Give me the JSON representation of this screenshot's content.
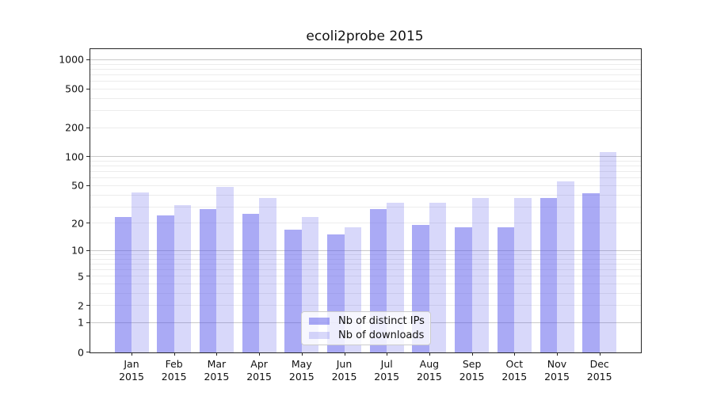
{
  "chart_data": {
    "type": "bar",
    "title": "ecoli2probe 2015",
    "categories": [
      "Jan",
      "Feb",
      "Mar",
      "Apr",
      "May",
      "Jun",
      "Jul",
      "Aug",
      "Sep",
      "Oct",
      "Nov",
      "Dec"
    ],
    "year": "2015",
    "series": [
      {
        "name": "Nb of distinct IPs",
        "color": "rgba(85,85,235,0.5)",
        "color_hex_observed": "#aaaaf5",
        "values": [
          23,
          24,
          28,
          25,
          17,
          15,
          28,
          19,
          18,
          18,
          37,
          41
        ]
      },
      {
        "name": "Nb of downloads",
        "color": "rgba(85,85,235,0.23)",
        "color_hex_observed": "#d8d8f8",
        "values": [
          42,
          31,
          48,
          37,
          23,
          18,
          33,
          33,
          37,
          37,
          55,
          110
        ]
      }
    ],
    "yscale": "log1p",
    "yticks": [
      0,
      1,
      2,
      5,
      10,
      20,
      50,
      100,
      200,
      500,
      1000
    ],
    "minor_grid_values": [
      2,
      3,
      4,
      5,
      6,
      7,
      8,
      9,
      20,
      30,
      40,
      50,
      60,
      70,
      80,
      90,
      200,
      300,
      400,
      500,
      600,
      700,
      800,
      900
    ],
    "major_grid_values": [
      1,
      10,
      100,
      1000
    ],
    "ylim": [
      0,
      1275
    ],
    "grid": true,
    "legend_position": "lower center",
    "colors": {
      "minor_grid": "#ececec",
      "major_grid": "#c9c9c9",
      "spine": "#262626",
      "text": "#111111"
    }
  }
}
